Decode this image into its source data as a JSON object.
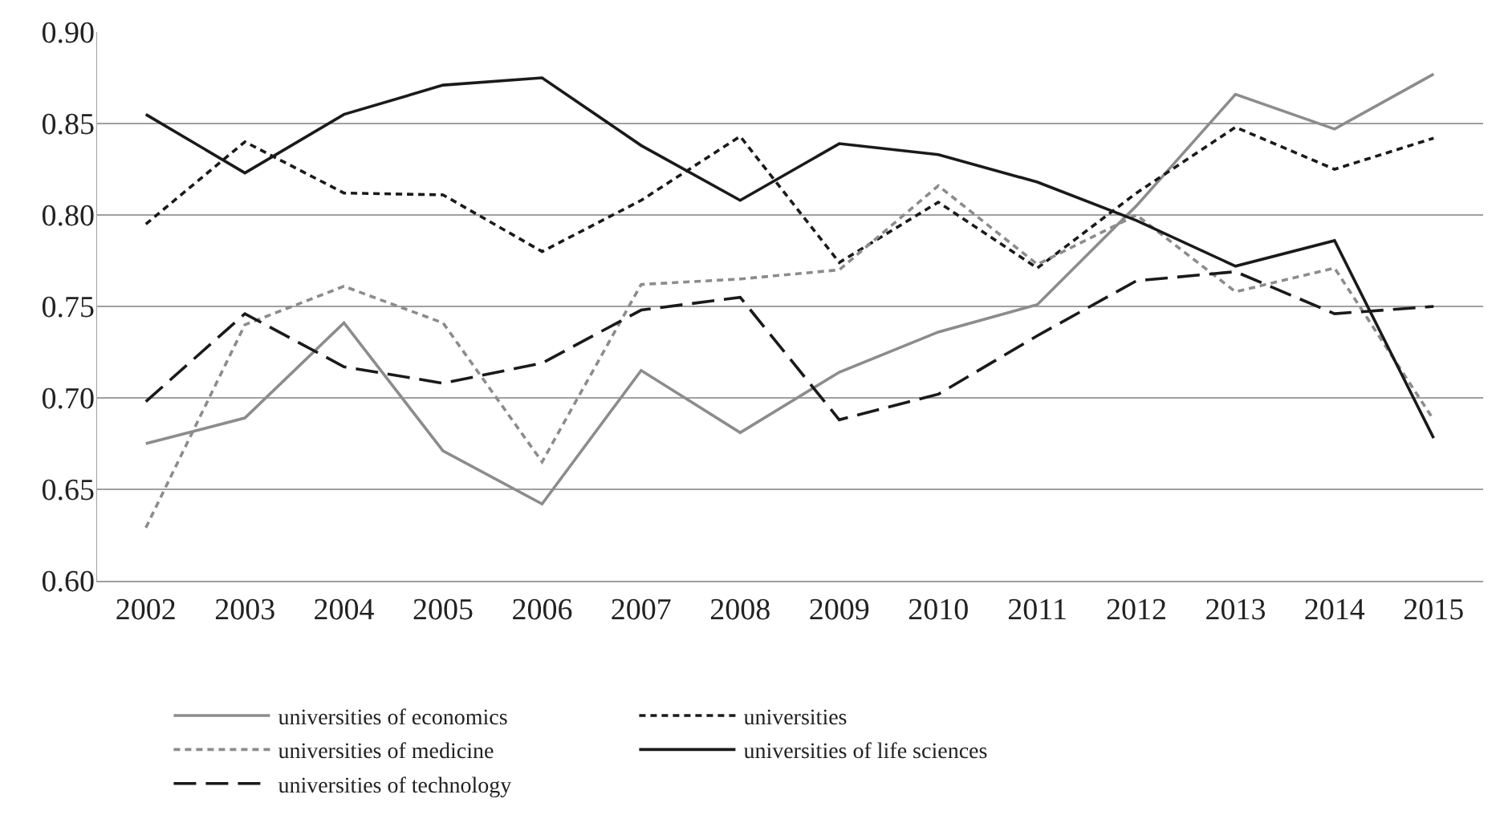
{
  "chart_data": {
    "type": "line",
    "categories": [
      "2002",
      "2003",
      "2004",
      "2005",
      "2006",
      "2007",
      "2008",
      "2009",
      "2010",
      "2011",
      "2012",
      "2013",
      "2014",
      "2015"
    ],
    "series": [
      {
        "name": "universities of economics",
        "color": "#8c8c8c",
        "line_style": "solid",
        "values": [
          0.675,
          0.689,
          0.741,
          0.671,
          0.642,
          0.715,
          0.681,
          0.714,
          0.736,
          0.751,
          0.805,
          0.866,
          0.847,
          0.877
        ]
      },
      {
        "name": "universities",
        "color": "#1a1a1a",
        "line_style": "dotted",
        "values": [
          0.795,
          0.84,
          0.812,
          0.811,
          0.78,
          0.808,
          0.843,
          0.774,
          0.807,
          0.771,
          0.812,
          0.848,
          0.825,
          0.842
        ]
      },
      {
        "name": "universities of medicine",
        "color": "#8c8c8c",
        "line_style": "dotted",
        "values": [
          0.629,
          0.74,
          0.761,
          0.741,
          0.665,
          0.762,
          0.765,
          0.77,
          0.816,
          0.773,
          0.8,
          0.758,
          0.771,
          0.688
        ]
      },
      {
        "name": "universities of life sciences",
        "color": "#1a1a1a",
        "line_style": "solid",
        "values": [
          0.855,
          0.823,
          0.855,
          0.871,
          0.875,
          0.838,
          0.808,
          0.839,
          0.833,
          0.818,
          0.797,
          0.772,
          0.786,
          0.678
        ]
      },
      {
        "name": "universities of technology",
        "color": "#1a1a1a",
        "line_style": "dashed",
        "values": [
          0.698,
          0.746,
          0.717,
          0.708,
          0.719,
          0.748,
          0.755,
          0.688,
          0.702,
          0.734,
          0.764,
          0.769,
          0.746,
          0.75
        ]
      }
    ],
    "ylim": [
      0.6,
      0.9
    ],
    "yticks": [
      {
        "value": 0.6,
        "label": "0.60"
      },
      {
        "value": 0.65,
        "label": "0.65"
      },
      {
        "value": 0.7,
        "label": "0.70"
      },
      {
        "value": 0.75,
        "label": "0.75"
      },
      {
        "value": 0.8,
        "label": "0.80"
      },
      {
        "value": 0.85,
        "label": "0.85"
      },
      {
        "value": 0.9,
        "label": "0.90"
      }
    ],
    "grid": "y",
    "legend": "bottom",
    "marker": "none"
  }
}
